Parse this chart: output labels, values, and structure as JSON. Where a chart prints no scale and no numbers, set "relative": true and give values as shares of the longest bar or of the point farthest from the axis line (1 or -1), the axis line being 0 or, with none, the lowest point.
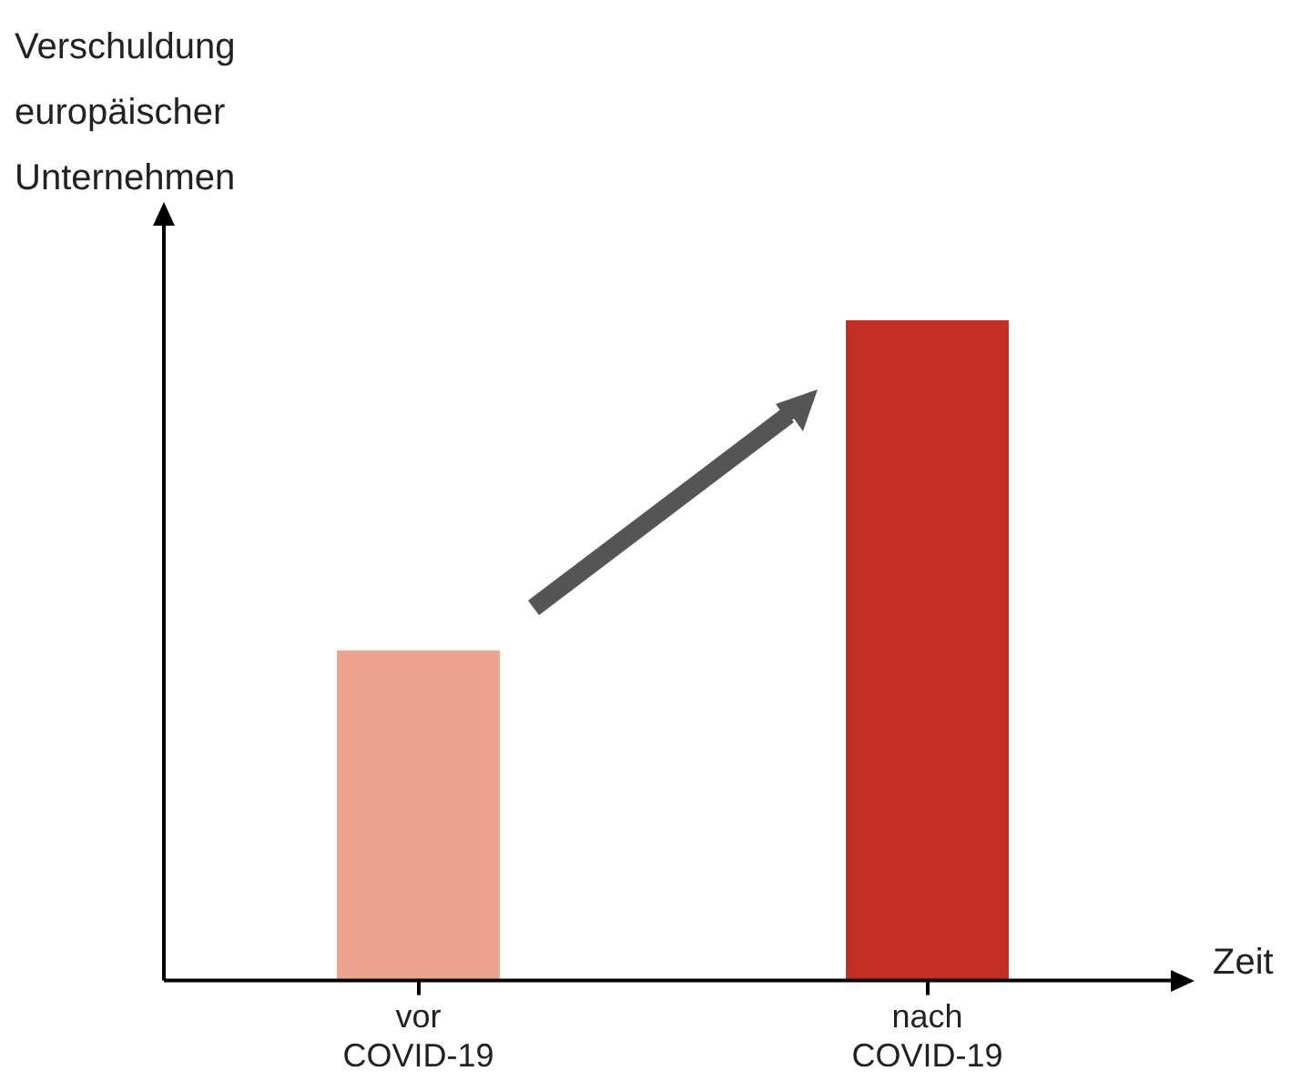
{
  "chart_data": {
    "type": "bar",
    "relative": true,
    "xlabel": "Zeit",
    "ylabel": "Verschuldung europäischer Unternehmen",
    "categories": [
      "vor COVID-19",
      "nach COVID-19"
    ],
    "values": [
      0.5,
      1
    ],
    "colors": [
      "#eda48e",
      "#c22e24"
    ],
    "grid": false,
    "legend": false
  }
}
